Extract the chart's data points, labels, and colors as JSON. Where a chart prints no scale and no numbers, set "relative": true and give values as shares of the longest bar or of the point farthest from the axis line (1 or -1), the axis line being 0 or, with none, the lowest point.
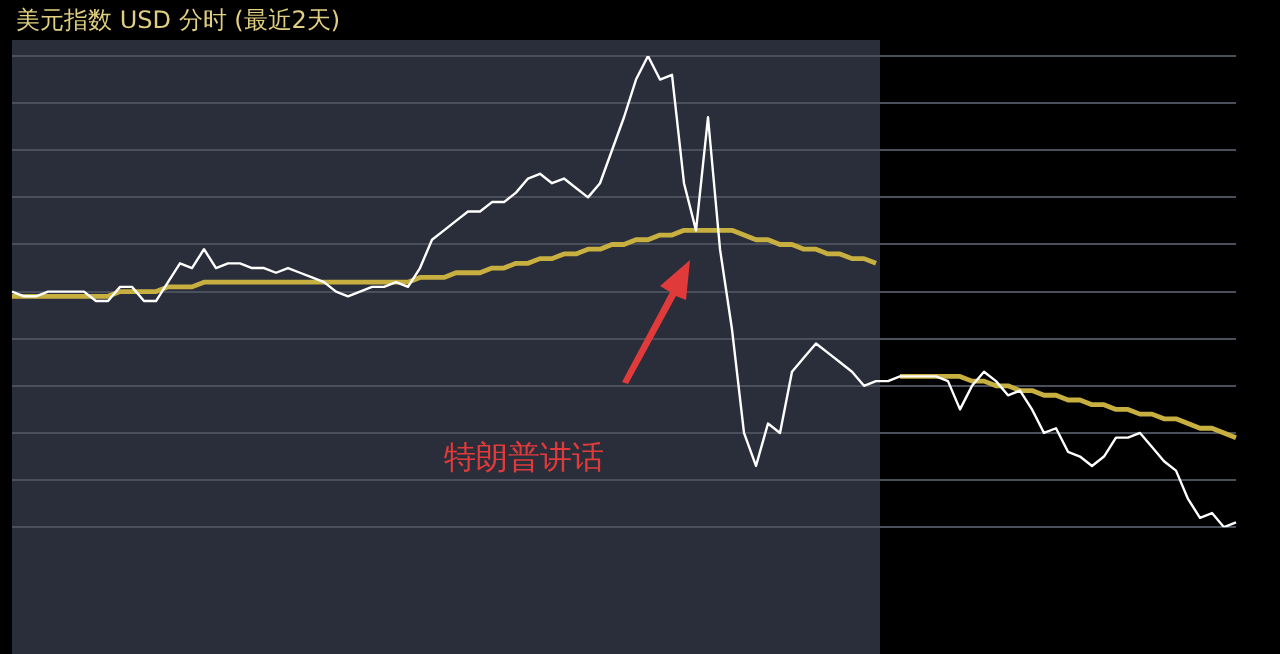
{
  "chart_data": {
    "type": "line",
    "title": "美元指数 USD 分时 (最近2天)",
    "relative": true,
    "grid": "y",
    "legend": false,
    "marker": "none",
    "line_style": "solid",
    "annotations": [
      "特朗普讲话"
    ],
    "categories": [
      null,
      null,
      null,
      null,
      null,
      null,
      null,
      null,
      null,
      null,
      null,
      null,
      null,
      null,
      null,
      null,
      null,
      null,
      null,
      null,
      null,
      null,
      null,
      null,
      null,
      null,
      null,
      null,
      null,
      null,
      null,
      null,
      null,
      null,
      null,
      null,
      null,
      null,
      null,
      null,
      null,
      null,
      null,
      null,
      null,
      null,
      null,
      null,
      null,
      null,
      null,
      null,
      null,
      null,
      null,
      null,
      null,
      null,
      null,
      null,
      null,
      null,
      null,
      null,
      null,
      null,
      null,
      null,
      null,
      null,
      null,
      null,
      null,
      null,
      null,
      null,
      null,
      null,
      null,
      null,
      null,
      null,
      null,
      null,
      null,
      null,
      null,
      null,
      null,
      null,
      null,
      null,
      null,
      null,
      null,
      null,
      null,
      null,
      null,
      null,
      null,
      null,
      null
    ],
    "series": [
      {
        "color": "#ffffff",
        "values": [
          0.5,
          0.49,
          0.49,
          0.5,
          0.5,
          0.5,
          0.5,
          0.48,
          0.48,
          0.51,
          0.51,
          0.48,
          0.48,
          0.52,
          0.56,
          0.55,
          0.59,
          0.55,
          0.56,
          0.56,
          0.55,
          0.55,
          0.54,
          0.55,
          0.54,
          0.53,
          0.52,
          0.5,
          0.49,
          0.5,
          0.51,
          0.51,
          0.52,
          0.51,
          0.55,
          0.61,
          0.63,
          0.65,
          0.67,
          0.67,
          0.69,
          0.69,
          0.71,
          0.74,
          0.75,
          0.73,
          0.74,
          0.72,
          0.7,
          0.73,
          0.8,
          0.87,
          0.95,
          1,
          0.95,
          0.96,
          0.73,
          0.63,
          0.87,
          0.59,
          0.42,
          0.2,
          0.13,
          0.22,
          0.2,
          0.33,
          0.36,
          0.39,
          0.37,
          0.35,
          0.33,
          0.3,
          0.31,
          0.31,
          0.32,
          0.32,
          0.32,
          0.32,
          0.31,
          0.25,
          0.3,
          0.33,
          0.31,
          0.28,
          0.29,
          0.25,
          0.2,
          0.21,
          0.16,
          0.15,
          0.13,
          0.15,
          0.19,
          0.19,
          0.2,
          0.17,
          0.14,
          0.12,
          0.06,
          0.02,
          0.03,
          0,
          0.01
        ]
      },
      {
        "color": "#c8b040",
        "values": [
          0.49,
          0.49,
          0.49,
          0.49,
          0.49,
          0.49,
          0.49,
          0.49,
          0.49,
          0.5,
          0.5,
          0.5,
          0.5,
          0.51,
          0.51,
          0.51,
          0.52,
          0.52,
          0.52,
          0.52,
          0.52,
          0.52,
          0.52,
          0.52,
          0.52,
          0.52,
          0.52,
          0.52,
          0.52,
          0.52,
          0.52,
          0.52,
          0.52,
          0.52,
          0.53,
          0.53,
          0.53,
          0.54,
          0.54,
          0.54,
          0.55,
          0.55,
          0.56,
          0.56,
          0.57,
          0.57,
          0.58,
          0.58,
          0.59,
          0.59,
          0.6,
          0.6,
          0.61,
          0.61,
          0.62,
          0.62,
          0.63,
          0.63,
          0.63,
          0.63,
          0.63,
          0.62,
          0.61,
          0.61,
          0.6,
          0.6,
          0.59,
          0.59,
          0.58,
          0.58,
          0.57,
          0.57,
          0.56,
          null,
          0.32,
          0.32,
          0.32,
          0.32,
          0.32,
          0.32,
          0.31,
          0.31,
          0.3,
          0.3,
          0.29,
          0.29,
          0.28,
          0.28,
          0.27,
          0.27,
          0.26,
          0.26,
          0.25,
          0.25,
          0.24,
          0.24,
          0.23,
          0.23,
          0.22,
          0.21,
          0.21,
          0.2,
          0.19
        ]
      }
    ]
  }
}
